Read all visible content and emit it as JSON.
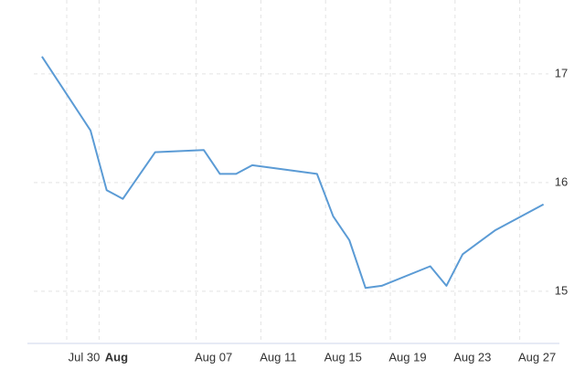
{
  "chart_data": {
    "type": "line",
    "x": [
      "Jul 27",
      "Jul 30",
      "Jul 31",
      "Aug 01",
      "Aug 03",
      "Aug 06",
      "Aug 07",
      "Aug 08",
      "Aug 09",
      "Aug 10",
      "Aug 13",
      "Aug 14",
      "Aug 15",
      "Aug 16",
      "Aug 17",
      "Aug 20",
      "Aug 21",
      "Aug 22",
      "Aug 23",
      "Aug 24",
      "Aug 27"
    ],
    "series": [
      {
        "color": "#5b9bd5",
        "values": [
          17.16,
          16.48,
          15.93,
          15.85,
          16.28,
          16.3,
          16.08,
          16.08,
          16.16,
          16.14,
          16.08,
          15.69,
          15.47,
          15.03,
          15.05,
          15.23,
          15.05,
          15.34,
          15.45,
          15.56,
          15.8
        ]
      }
    ],
    "xticks": [
      "Jul 30",
      {
        "value": "Aug 01",
        "label": "Aug"
      },
      "Aug 07",
      "Aug 11",
      "Aug 15",
      "Aug 19",
      "Aug 23",
      "Aug 27"
    ],
    "ylim": [
      14.52,
      17.68
    ],
    "yticks": [
      15,
      16,
      17
    ],
    "grid": true
  }
}
